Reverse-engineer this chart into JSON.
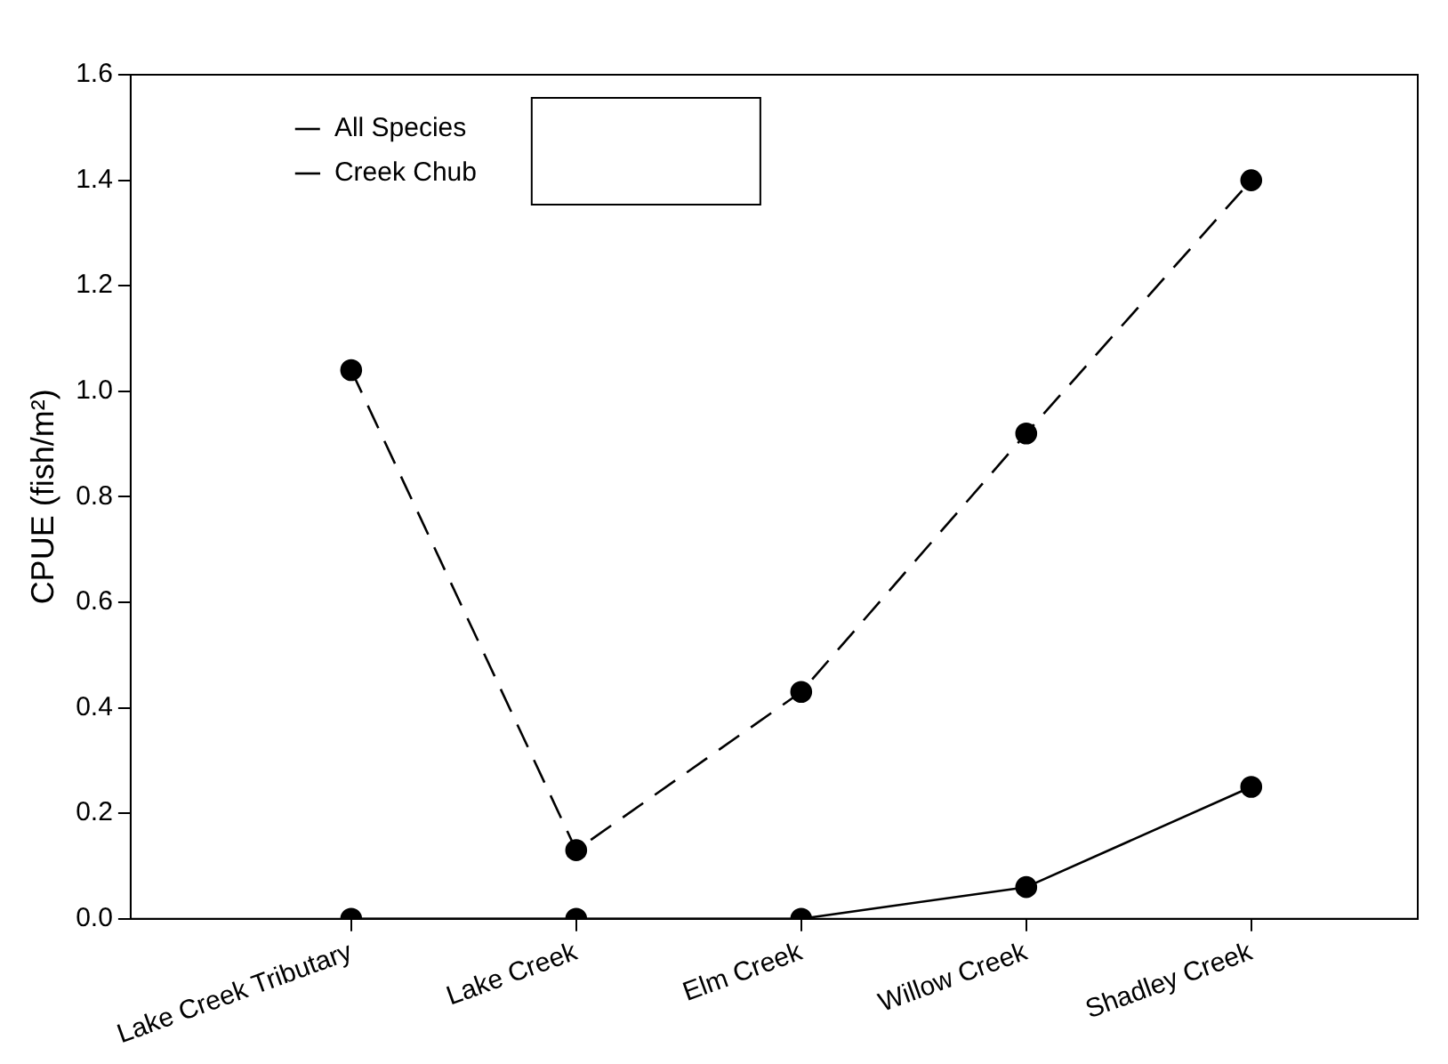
{
  "chart_data": {
    "type": "line",
    "ylabel": "CPUE (fish/m²)",
    "categories": [
      "Lake Creek Tributary",
      "Lake Creek",
      "Elm Creek",
      "Willow Creek",
      "Shadley Creek"
    ],
    "series": [
      {
        "name": "All Species",
        "color": "#000000",
        "line_style": "dashed",
        "values": [
          1.04,
          0.13,
          0.43,
          0.92,
          1.4
        ]
      },
      {
        "name": "Creek Chub",
        "color": "#000000",
        "line_style": "solid",
        "values": [
          0,
          0,
          0,
          0.06,
          0.25
        ]
      }
    ],
    "ylim": [
      0,
      1.6
    ],
    "yticks": [
      {
        "value": 0,
        "label": "0.0"
      },
      {
        "value": 0.2,
        "label": "0.2"
      },
      {
        "value": 0.4,
        "label": "0.4"
      },
      {
        "value": 0.6,
        "label": "0.6"
      },
      {
        "value": 0.8,
        "label": "0.8"
      },
      {
        "value": 1,
        "label": "1.0"
      },
      {
        "value": 1.2,
        "label": "1.2"
      },
      {
        "value": 1.4,
        "label": "1.4"
      },
      {
        "value": 1.6,
        "label": "1.6"
      }
    ],
    "grid": false,
    "legend": "top left",
    "marker": "circle"
  }
}
